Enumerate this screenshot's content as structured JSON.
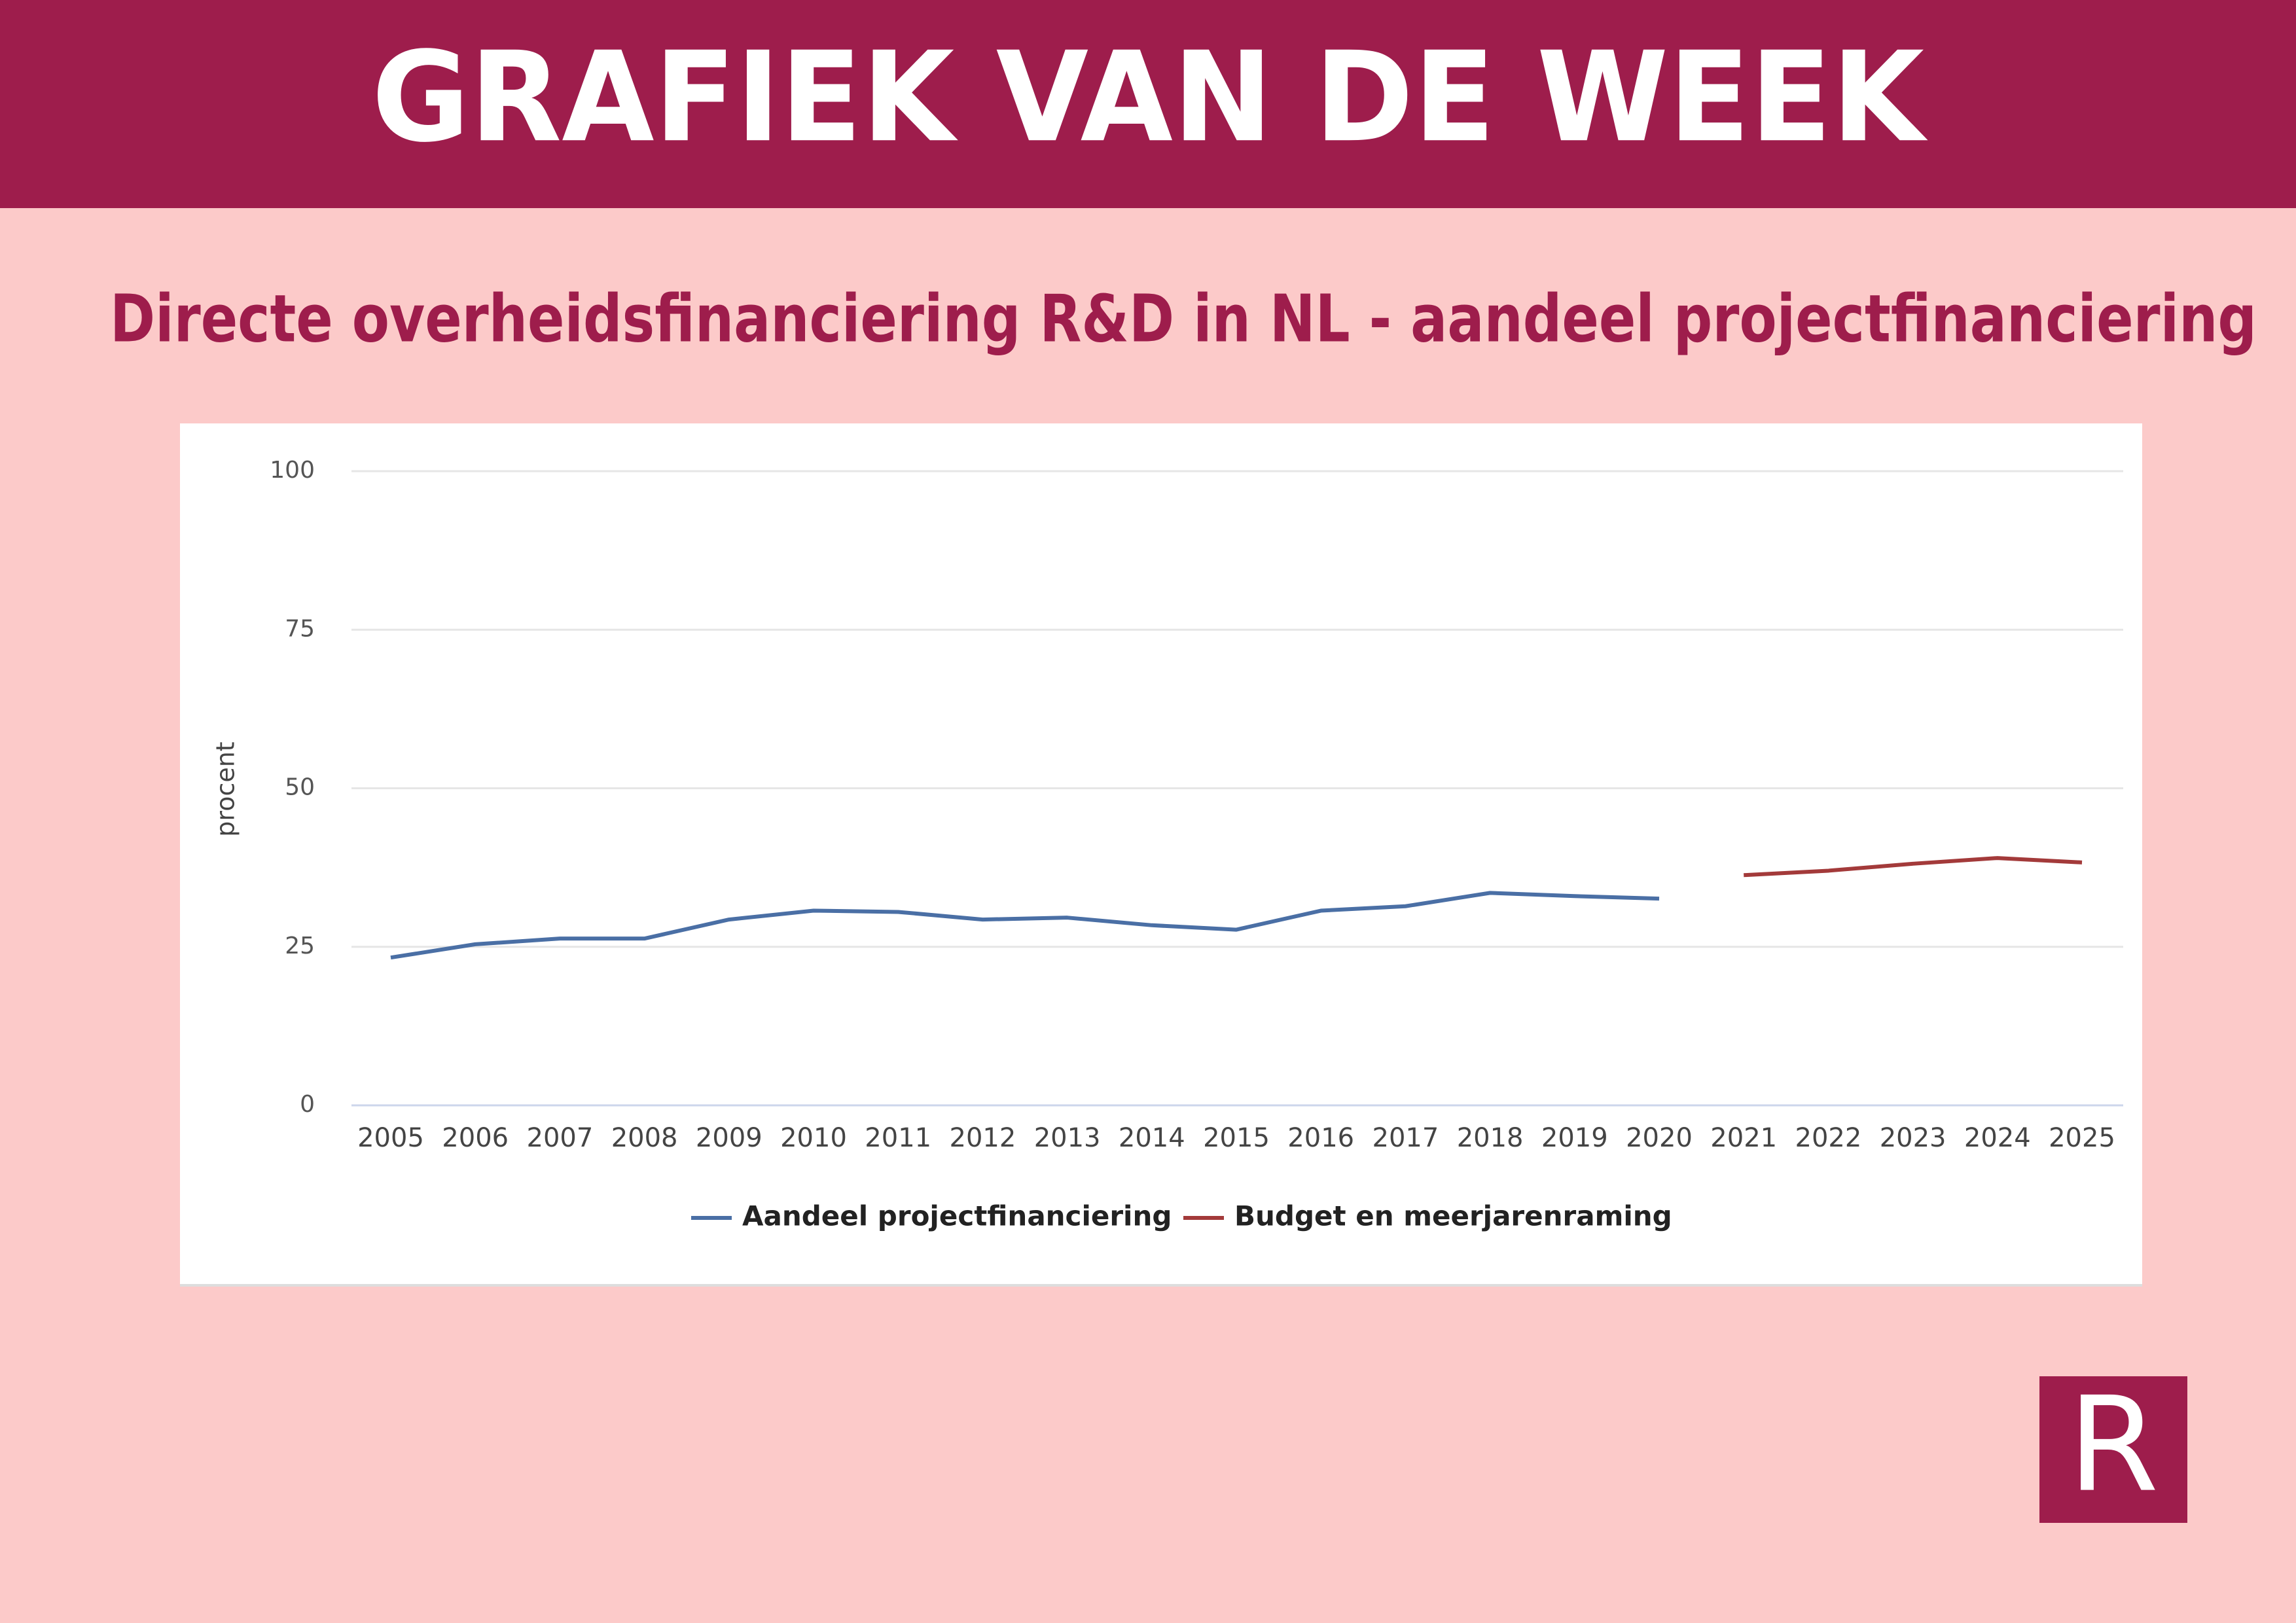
{
  "header": {
    "title": "GRAFIEK VAN DE WEEK"
  },
  "logo": "R",
  "chart_data": {
    "type": "line",
    "title": "Directe overheidsfinanciering R&D in NL - aandeel projectfinanciering",
    "y_label": "procent",
    "categories": [
      "2005",
      "2006",
      "2007",
      "2008",
      "2009",
      "2010",
      "2011",
      "2012",
      "2013",
      "2014",
      "2015",
      "2016",
      "2017",
      "2018",
      "2019",
      "2020",
      "2021",
      "2022",
      "2023",
      "2024",
      "2025"
    ],
    "series": [
      {
        "name": "Aandeel projectfinanciering",
        "color": "#4a6fa5",
        "values": [
          23.3,
          25.4,
          26.3,
          26.3,
          29.3,
          30.7,
          30.5,
          29.3,
          29.6,
          28.4,
          27.7,
          30.7,
          31.4,
          33.5,
          33.0,
          32.6,
          null,
          null,
          null,
          null,
          null
        ]
      },
      {
        "name": "Budget en meerjarenraming",
        "color": "#a33a3a",
        "values": [
          null,
          null,
          null,
          null,
          null,
          null,
          null,
          null,
          null,
          null,
          null,
          null,
          null,
          null,
          null,
          null,
          36.3,
          37.0,
          38.1,
          39.0,
          38.3
        ]
      }
    ],
    "ylim": [
      0,
      100
    ],
    "yticks": [
      0,
      25,
      50,
      75,
      100
    ],
    "grid": true
  }
}
